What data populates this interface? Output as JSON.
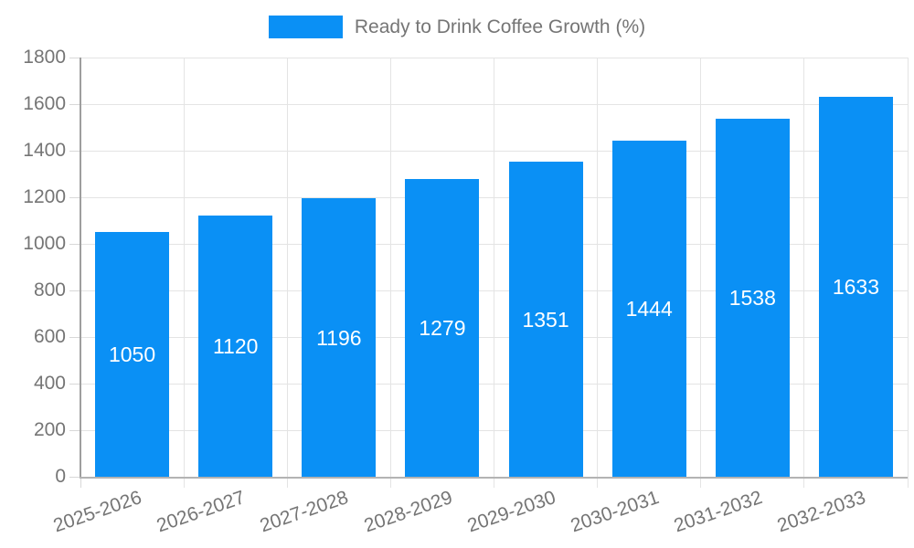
{
  "chart_data": {
    "type": "bar",
    "title": "Ready to Drink Coffee Growth (%)",
    "categories": [
      "2025-2026",
      "2026-2027",
      "2027-2028",
      "2028-2029",
      "2029-2030",
      "2030-2031",
      "2031-2032",
      "2032-2033"
    ],
    "values": [
      1050,
      1120,
      1196,
      1279,
      1351,
      1444,
      1538,
      1633
    ],
    "yticks": [
      0,
      200,
      400,
      600,
      800,
      1000,
      1200,
      1400,
      1600,
      1800
    ],
    "ylim": [
      0,
      1800
    ],
    "xlabel": "",
    "ylabel": "",
    "grid": "both",
    "legend_position": "top-center",
    "value_labels": "inside-center",
    "colors": {
      "bar": "#0a90f5",
      "grid": "#e4e4e4",
      "tick": "#d8d8d8",
      "axis": "#9e9e9e",
      "baseline": "#b3b3b3",
      "text": "#757575",
      "value_label": "#ffffff",
      "background": "#ffffff"
    }
  }
}
